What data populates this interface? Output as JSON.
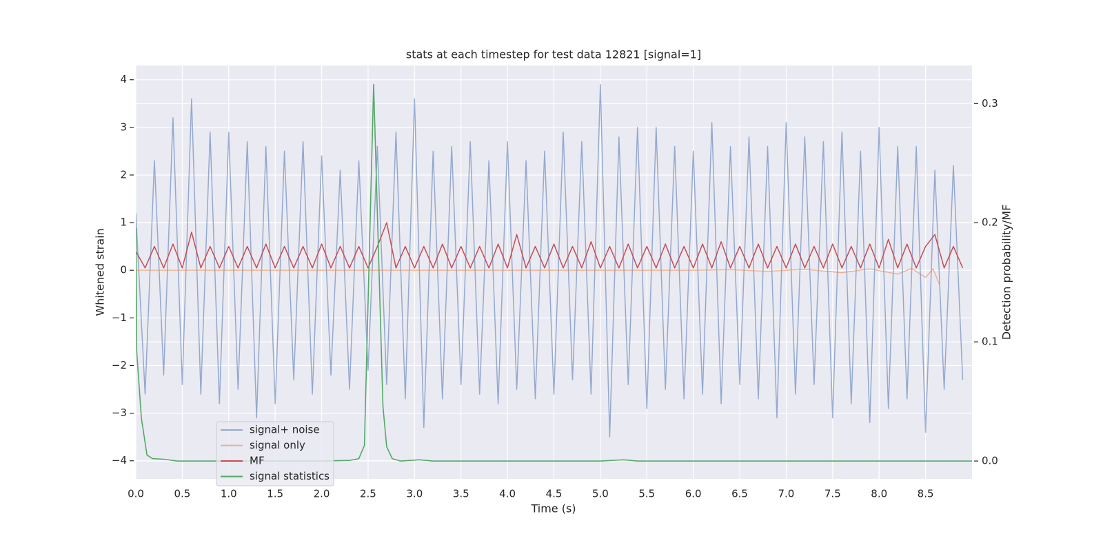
{
  "chart_data": {
    "type": "line",
    "title": "stats at each timestep for test data 12821 [signal=1]",
    "xlabel": "Time (s)",
    "ylabel": "Whitened strain",
    "y2label": "Detection probability/MF",
    "xlim": [
      0,
      9.0
    ],
    "xticks": [
      {
        "value": 0,
        "label": "0.0"
      },
      0.5,
      {
        "value": 1,
        "label": "1.0"
      },
      1.5,
      {
        "value": 2,
        "label": "2.0"
      },
      2.5,
      {
        "value": 3,
        "label": "3.0"
      },
      3.5,
      {
        "value": 4,
        "label": "4.0"
      },
      4.5,
      {
        "value": 5,
        "label": "5.0"
      },
      5.5,
      {
        "value": 6,
        "label": "6.0"
      },
      6.5,
      {
        "value": 7,
        "label": "7.0"
      },
      7.5,
      {
        "value": 8,
        "label": "8.0"
      },
      8.5
    ],
    "ylim": [
      -4.38,
      4.3
    ],
    "yticks": [
      {
        "value": -4,
        "label": "−4"
      },
      {
        "value": -3,
        "label": "−3"
      },
      {
        "value": -2,
        "label": "−2"
      },
      {
        "value": -1,
        "label": "−1"
      },
      0,
      1,
      2,
      3,
      4
    ],
    "y2lim": [
      -0.015,
      0.332
    ],
    "y2ticks": [
      {
        "value": 0,
        "label": "0.0"
      },
      0.1,
      0.2,
      0.3
    ],
    "grid": true,
    "legend": "lower left",
    "series": [
      {
        "name": "signal+ noise",
        "color": "#4c72b0",
        "x": [
          0,
          0.1,
          0.2,
          0.3,
          0.4,
          0.5,
          0.6,
          0.7,
          0.8,
          0.9,
          1,
          1.1,
          1.2,
          1.3,
          1.4,
          1.5,
          1.6,
          1.7,
          1.8,
          1.9,
          2,
          2.1,
          2.2,
          2.3,
          2.4,
          2.5,
          2.6,
          2.7,
          2.8,
          2.9,
          3,
          3.1,
          3.2,
          3.3,
          3.4,
          3.5,
          3.6,
          3.7,
          3.8,
          3.9,
          4,
          4.1,
          4.2,
          4.3,
          4.4,
          4.5,
          4.6,
          4.7,
          4.8,
          4.9,
          5,
          5.1,
          5.2,
          5.3,
          5.4,
          5.5,
          5.6,
          5.7,
          5.8,
          5.9,
          6,
          6.1,
          6.2,
          6.3,
          6.4,
          6.5,
          6.6,
          6.7,
          6.8,
          6.9,
          7,
          7.1,
          7.2,
          7.3,
          7.4,
          7.5,
          7.6,
          7.7,
          7.8,
          7.9,
          8,
          8.1,
          8.2,
          8.3,
          8.4,
          8.5,
          8.6,
          8.7,
          8.8,
          8.9
        ],
        "values": [
          1.2,
          -2.6,
          2.3,
          -2.2,
          3.2,
          -2.4,
          3.6,
          -2.6,
          2.9,
          -2.8,
          2.9,
          -2.5,
          2.7,
          -3.1,
          2.6,
          -2.8,
          2.5,
          -2.3,
          2.7,
          -2.6,
          2.4,
          -2.2,
          2.1,
          -2.5,
          2.3,
          -2.1,
          2.6,
          -2.4,
          2.9,
          -2.7,
          3.6,
          -3.3,
          2.5,
          -2.7,
          2.6,
          -2.4,
          2.7,
          -2.6,
          2.3,
          -2.8,
          2.7,
          -2.5,
          2.3,
          -2.7,
          2.5,
          -2.6,
          2.9,
          -2.3,
          2.7,
          -2.6,
          3.9,
          -3.5,
          2.8,
          -2.4,
          3.0,
          -2.9,
          3.0,
          -2.5,
          2.6,
          -2.7,
          2.5,
          -2.6,
          3.1,
          -2.8,
          2.6,
          -2.4,
          2.8,
          -2.7,
          2.6,
          -3.1,
          3.1,
          -2.6,
          2.8,
          -2.4,
          2.7,
          -3.1,
          2.9,
          -2.8,
          2.5,
          -3.2,
          3.0,
          -2.9,
          2.6,
          -2.7,
          2.6,
          -3.4,
          2.1,
          -2.5,
          2.2,
          -2.3
        ]
      },
      {
        "name": "signal only",
        "color": "#dd8452",
        "x": [
          0,
          1,
          2,
          3,
          4,
          5,
          6,
          6.4,
          6.8,
          7.2,
          7.6,
          7.9,
          8.2,
          8.35,
          8.5,
          8.58,
          8.63,
          8.65
        ],
        "values": [
          0,
          0,
          0,
          0,
          0,
          0,
          0,
          0.01,
          -0.02,
          0.02,
          -0.05,
          0.03,
          -0.08,
          0.04,
          -0.15,
          0.03,
          -0.2,
          -0.3
        ]
      },
      {
        "name": "MF",
        "color": "#c44e52",
        "x": [
          0,
          0.1,
          0.2,
          0.3,
          0.4,
          0.5,
          0.6,
          0.7,
          0.8,
          0.9,
          1,
          1.1,
          1.2,
          1.3,
          1.4,
          1.5,
          1.6,
          1.7,
          1.8,
          1.9,
          2,
          2.1,
          2.2,
          2.3,
          2.4,
          2.5,
          2.6,
          2.7,
          2.8,
          2.9,
          3,
          3.1,
          3.2,
          3.3,
          3.4,
          3.5,
          3.6,
          3.7,
          3.8,
          3.9,
          4,
          4.1,
          4.2,
          4.3,
          4.4,
          4.5,
          4.6,
          4.7,
          4.8,
          4.9,
          5,
          5.1,
          5.2,
          5.3,
          5.4,
          5.5,
          5.6,
          5.7,
          5.8,
          5.9,
          6,
          6.1,
          6.2,
          6.3,
          6.4,
          6.5,
          6.6,
          6.7,
          6.8,
          6.9,
          7,
          7.1,
          7.2,
          7.3,
          7.4,
          7.5,
          7.6,
          7.7,
          7.8,
          7.9,
          8,
          8.1,
          8.2,
          8.3,
          8.4,
          8.5,
          8.6,
          8.7,
          8.8,
          8.9
        ],
        "values": [
          0.4,
          0.05,
          0.5,
          0.05,
          0.55,
          0.05,
          0.8,
          0.05,
          0.5,
          0.05,
          0.5,
          0.05,
          0.5,
          0.05,
          0.55,
          0.05,
          0.5,
          0.05,
          0.5,
          0.05,
          0.55,
          0.05,
          0.5,
          0.05,
          0.5,
          0.05,
          0.5,
          1.0,
          0.05,
          0.5,
          0.05,
          0.5,
          0.05,
          0.55,
          0.05,
          0.5,
          0.05,
          0.5,
          0.05,
          0.55,
          0.05,
          0.75,
          0.05,
          0.5,
          0.05,
          0.55,
          0.05,
          0.5,
          0.05,
          0.6,
          0.05,
          0.5,
          0.05,
          0.55,
          0.05,
          0.5,
          0.05,
          0.55,
          0.05,
          0.5,
          0.05,
          0.55,
          0.05,
          0.6,
          0.05,
          0.5,
          0.05,
          0.55,
          0.05,
          0.5,
          0.05,
          0.55,
          0.05,
          0.5,
          0.05,
          0.55,
          0.05,
          0.5,
          0.05,
          0.55,
          0.05,
          0.65,
          0.05,
          0.55,
          0.05,
          0.5,
          0.75,
          0.05,
          0.5,
          0.05
        ]
      },
      {
        "name": "signal statistics",
        "color": "#55a868",
        "axis": "y2",
        "x": [
          0,
          0.01,
          0.06,
          0.12,
          0.18,
          0.3,
          0.45,
          1.0,
          2.0,
          2.3,
          2.4,
          2.46,
          2.56,
          2.66,
          2.7,
          2.76,
          2.85,
          3.05,
          3.2,
          3.5,
          5.0,
          5.25,
          5.4,
          9.0
        ],
        "values": [
          0.196,
          0.092,
          0.036,
          0.005,
          0.002,
          0.0015,
          0,
          0,
          0,
          0.0005,
          0.002,
          0.013,
          0.316,
          0.046,
          0.012,
          0.002,
          0,
          0.001,
          0,
          0,
          0,
          0.001,
          0,
          0
        ]
      }
    ]
  }
}
